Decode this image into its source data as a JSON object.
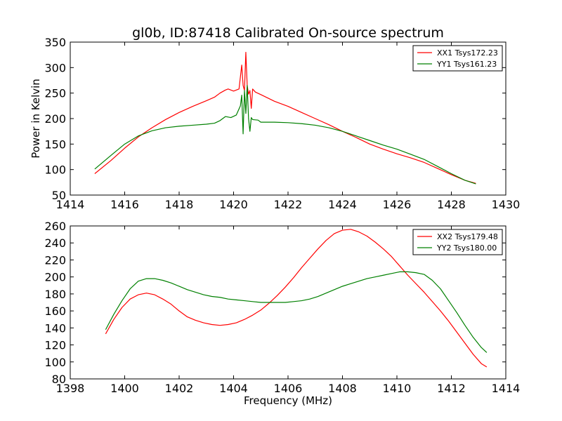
{
  "chart_data": [
    {
      "type": "line",
      "title": "gl0b, ID:87418 Calibrated On-source spectrum",
      "xlabel": "",
      "ylabel": "Power in Kelvin",
      "xlim": [
        1414,
        1430
      ],
      "ylim": [
        50,
        350
      ],
      "xticks": [
        1414,
        1416,
        1418,
        1420,
        1422,
        1424,
        1426,
        1428,
        1430
      ],
      "yticks": [
        50,
        100,
        150,
        200,
        250,
        300,
        350
      ],
      "legend_position": "top-right",
      "grid": false,
      "series": [
        {
          "name": "XX1 Tsys172.23",
          "color": "#ff0000",
          "x": [
            1414.9,
            1415.5,
            1416,
            1416.5,
            1417,
            1417.5,
            1418,
            1418.5,
            1419,
            1419.3,
            1419.5,
            1419.7,
            1419.8,
            1420.0,
            1420.2,
            1420.3,
            1420.35,
            1420.4,
            1420.45,
            1420.5,
            1420.55,
            1420.6,
            1420.65,
            1420.7,
            1420.8,
            1421,
            1421.5,
            1422,
            1422.5,
            1423,
            1423.5,
            1424,
            1424.5,
            1425,
            1425.5,
            1426,
            1426.5,
            1427,
            1427.5,
            1428,
            1428.5,
            1428.9
          ],
          "values": [
            92,
            118,
            142,
            164,
            182,
            198,
            212,
            224,
            235,
            242,
            250,
            256,
            258,
            254,
            258,
            305,
            265,
            255,
            330,
            265,
            248,
            255,
            220,
            258,
            252,
            247,
            234,
            224,
            212,
            200,
            188,
            175,
            163,
            150,
            140,
            131,
            123,
            114,
            102,
            90,
            79,
            73
          ]
        },
        {
          "name": "YY1 Tsys161.23",
          "color": "#008000",
          "x": [
            1414.9,
            1415.5,
            1416,
            1416.5,
            1417,
            1417.5,
            1418,
            1418.5,
            1419,
            1419.3,
            1419.5,
            1419.7,
            1419.9,
            1420.1,
            1420.25,
            1420.3,
            1420.35,
            1420.4,
            1420.45,
            1420.5,
            1420.55,
            1420.6,
            1420.65,
            1420.7,
            1420.9,
            1421,
            1421.5,
            1422,
            1422.5,
            1423,
            1423.5,
            1424,
            1424.5,
            1425,
            1425.5,
            1426,
            1426.5,
            1427,
            1427.5,
            1428,
            1428.5,
            1428.9
          ],
          "values": [
            101,
            128,
            150,
            166,
            176,
            182,
            185,
            187,
            189,
            191,
            196,
            204,
            202,
            207,
            225,
            246,
            170,
            255,
            210,
            265,
            200,
            175,
            202,
            198,
            197,
            193,
            193,
            192,
            190,
            187,
            182,
            175,
            166,
            157,
            148,
            140,
            130,
            120,
            106,
            92,
            79,
            72
          ]
        }
      ]
    },
    {
      "type": "line",
      "title": "",
      "xlabel": "Frequency (MHz)",
      "ylabel": "",
      "xlim": [
        1398,
        1414
      ],
      "ylim": [
        80,
        260
      ],
      "xticks": [
        1398,
        1400,
        1402,
        1404,
        1406,
        1408,
        1410,
        1412,
        1414
      ],
      "yticks": [
        80,
        100,
        120,
        140,
        160,
        180,
        200,
        220,
        240,
        260
      ],
      "legend_position": "top-right",
      "grid": false,
      "series": [
        {
          "name": "XX2 Tsys179.48",
          "color": "#ff0000",
          "x": [
            1399.3,
            1399.6,
            1399.9,
            1400.2,
            1400.5,
            1400.8,
            1401.1,
            1401.4,
            1401.7,
            1402.0,
            1402.3,
            1402.6,
            1402.9,
            1403.2,
            1403.5,
            1403.8,
            1404.1,
            1404.4,
            1404.7,
            1405.0,
            1405.3,
            1405.6,
            1405.9,
            1406.2,
            1406.5,
            1406.8,
            1407.1,
            1407.4,
            1407.7,
            1408.0,
            1408.3,
            1408.6,
            1408.9,
            1409.2,
            1409.5,
            1409.8,
            1410.1,
            1410.4,
            1410.7,
            1411.0,
            1411.3,
            1411.6,
            1411.9,
            1412.2,
            1412.5,
            1412.8,
            1413.1,
            1413.3
          ],
          "values": [
            133,
            150,
            164,
            174,
            179,
            181,
            179,
            174,
            168,
            160,
            153,
            149,
            146,
            144,
            143,
            144,
            146,
            150,
            155,
            161,
            169,
            178,
            188,
            199,
            211,
            222,
            233,
            243,
            251,
            255,
            256,
            253,
            248,
            241,
            233,
            224,
            213,
            202,
            192,
            182,
            171,
            160,
            148,
            135,
            122,
            109,
            98,
            94
          ]
        },
        {
          "name": "YY2 Tsys180.00",
          "color": "#008000",
          "x": [
            1399.3,
            1399.6,
            1399.9,
            1400.2,
            1400.5,
            1400.8,
            1401.1,
            1401.4,
            1401.7,
            1402.0,
            1402.3,
            1402.6,
            1402.9,
            1403.2,
            1403.5,
            1403.8,
            1404.1,
            1404.4,
            1404.7,
            1405.0,
            1405.3,
            1405.6,
            1405.9,
            1406.2,
            1406.5,
            1406.8,
            1407.1,
            1407.4,
            1407.7,
            1408.0,
            1408.3,
            1408.6,
            1408.9,
            1409.2,
            1409.5,
            1409.8,
            1410.1,
            1410.4,
            1410.7,
            1411.0,
            1411.3,
            1411.6,
            1411.9,
            1412.2,
            1412.5,
            1412.8,
            1413.1,
            1413.3
          ],
          "values": [
            138,
            156,
            172,
            186,
            195,
            198,
            198,
            196,
            193,
            189,
            185,
            182,
            179,
            177,
            176,
            174,
            173,
            172,
            171,
            170,
            170,
            170,
            170,
            171,
            172,
            174,
            177,
            181,
            185,
            189,
            192,
            195,
            198,
            200,
            202,
            204,
            206,
            206,
            205,
            203,
            196,
            186,
            172,
            158,
            143,
            129,
            117,
            111
          ]
        }
      ]
    }
  ]
}
